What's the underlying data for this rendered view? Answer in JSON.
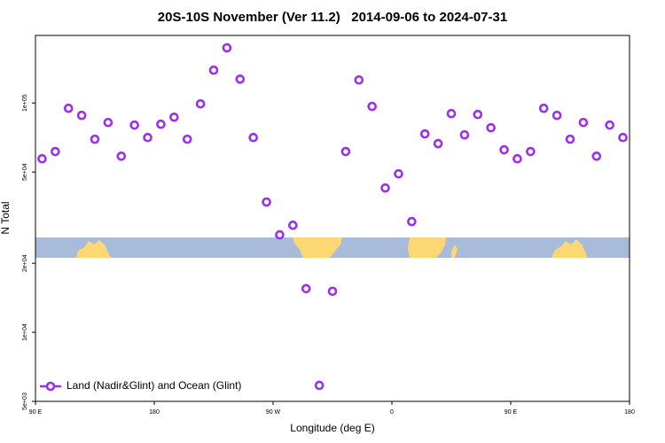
{
  "chart_data": {
    "type": "scatter",
    "title": "20S-10S November (Ver 11.2)   2014-09-06 to 2024-07-31",
    "xlabel": "Longitude (deg E)",
    "ylabel": "N Total",
    "log_y": true,
    "grid": false,
    "legend": "bottom-left",
    "xlim": [
      90,
      540
    ],
    "ylim": [
      5000,
      197000
    ],
    "xticks": [
      {
        "value": 90,
        "label": "90 E"
      },
      180,
      {
        "value": 270,
        "label": "90 W"
      },
      {
        "value": 360,
        "label": "0"
      },
      {
        "value": 450,
        "label": "90 E"
      },
      {
        "value": 540,
        "label": "180"
      }
    ],
    "yticks": [
      {
        "value": 5000,
        "label": "5e+03"
      },
      {
        "value": 10000,
        "label": "1e+04"
      },
      {
        "value": 20000,
        "label": "2e+04"
      },
      {
        "value": 50000,
        "label": "5e+04"
      },
      {
        "value": 100000,
        "label": "1e+05"
      }
    ],
    "x": [
      95,
      105,
      115,
      125,
      135,
      145,
      155,
      165,
      175,
      185,
      195,
      205,
      215,
      225,
      235,
      245,
      255,
      265,
      275,
      285,
      295,
      305,
      315,
      325,
      335,
      345,
      355,
      365,
      375,
      385,
      395,
      405,
      415,
      425,
      435,
      445,
      455,
      465,
      475,
      485,
      495,
      505,
      515,
      525,
      535
    ],
    "series": [
      {
        "name": "Land (Nadir&Glint) and Ocean (Glint)",
        "color": "#9b30f0",
        "values": [
          57100,
          61400,
          94800,
          88300,
          69500,
          82200,
          58600,
          80100,
          70700,
          80800,
          86700,
          69500,
          99100,
          139000,
          174000,
          127000,
          70700,
          37000,
          26600,
          29300,
          15500,
          5870,
          15100,
          61400,
          126000,
          96600,
          42600,
          49100,
          30400,
          73300,
          66500,
          89900,
          72600,
          89100,
          78000,
          62500,
          57100,
          61400,
          94800,
          88300,
          69500,
          82200,
          58600,
          80100,
          70700
        ]
      }
    ]
  }
}
